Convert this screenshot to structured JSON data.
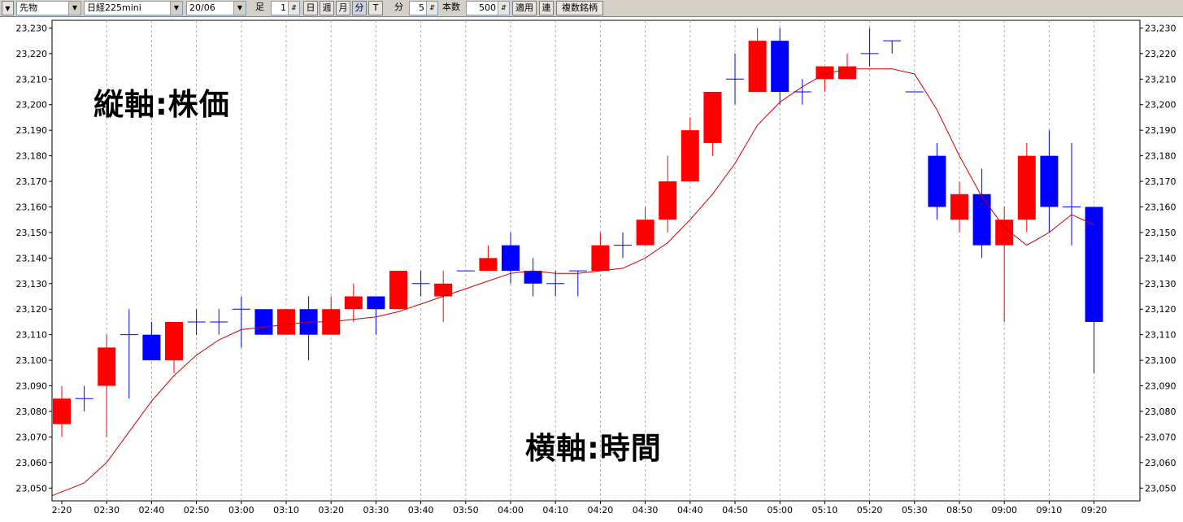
{
  "toolbar": {
    "menu_arrow": "▼",
    "market": "先物",
    "symbol": "日経225mini",
    "contract": "20/06",
    "ashi_label": "足",
    "ashi_value": "1",
    "btn_day": "日",
    "btn_week": "週",
    "btn_month": "月",
    "btn_minute": "分",
    "btn_tick": "T",
    "fun_label": "分",
    "fun_value": "5",
    "count_label": "本数",
    "count_value": "500",
    "apply": "適用",
    "link": "連",
    "multi": "複数銘柄"
  },
  "annotations": {
    "vertical": "縦軸:株価",
    "horizontal": "横軸:時間"
  },
  "colors": {
    "up": "#ff0000",
    "down": "#0000ff",
    "ma": "#cc0000",
    "grid": "#b0b0b0"
  },
  "chart_data": {
    "type": "candlestick",
    "ylim": [
      23045,
      23233
    ],
    "yticks": [
      23050,
      23060,
      23070,
      23080,
      23090,
      23100,
      23110,
      23120,
      23130,
      23140,
      23150,
      23160,
      23170,
      23180,
      23190,
      23200,
      23210,
      23220,
      23230
    ],
    "ytick_labels": [
      "23,050",
      "23,060",
      "23,070",
      "23,080",
      "23,090",
      "23,100",
      "23,110",
      "23,120",
      "23,130",
      "23,140",
      "23,150",
      "23,160",
      "23,170",
      "23,180",
      "23,190",
      "23,200",
      "23,210",
      "23,220",
      "23,230"
    ],
    "xtick_labels": [
      "2:20",
      "02:30",
      "02:40",
      "02:50",
      "03:00",
      "03:10",
      "03:20",
      "03:30",
      "03:40",
      "03:50",
      "04:00",
      "04:10",
      "04:20",
      "04:30",
      "04:40",
      "04:50",
      "05:00",
      "05:10",
      "05:20",
      "05:30",
      "08:50",
      "09:00",
      "09:10",
      "09:20"
    ],
    "candles": [
      {
        "o": 23075,
        "h": 23090,
        "l": 23070,
        "c": 23085
      },
      {
        "o": 23085,
        "h": 23090,
        "l": 23080,
        "c": 23085
      },
      {
        "o": 23090,
        "h": 23110,
        "l": 23070,
        "c": 23105
      },
      {
        "o": 23110,
        "h": 23120,
        "l": 23085,
        "c": 23110
      },
      {
        "o": 23110,
        "h": 23115,
        "l": 23100,
        "c": 23100
      },
      {
        "o": 23100,
        "h": 23115,
        "l": 23095,
        "c": 23115
      },
      {
        "o": 23115,
        "h": 23120,
        "l": 23110,
        "c": 23115
      },
      {
        "o": 23115,
        "h": 23120,
        "l": 23110,
        "c": 23115
      },
      {
        "o": 23120,
        "h": 23125,
        "l": 23105,
        "c": 23120
      },
      {
        "o": 23120,
        "h": 23120,
        "l": 23110,
        "c": 23110
      },
      {
        "o": 23110,
        "h": 23120,
        "l": 23110,
        "c": 23120
      },
      {
        "o": 23120,
        "h": 23125,
        "l": 23100,
        "c": 23110
      },
      {
        "o": 23110,
        "h": 23125,
        "l": 23110,
        "c": 23120
      },
      {
        "o": 23120,
        "h": 23130,
        "l": 23115,
        "c": 23125
      },
      {
        "o": 23125,
        "h": 23125,
        "l": 23110,
        "c": 23120
      },
      {
        "o": 23120,
        "h": 23135,
        "l": 23120,
        "c": 23135
      },
      {
        "o": 23130,
        "h": 23135,
        "l": 23125,
        "c": 23130
      },
      {
        "o": 23125,
        "h": 23135,
        "l": 23115,
        "c": 23130
      },
      {
        "o": 23135,
        "h": 23135,
        "l": 23135,
        "c": 23135
      },
      {
        "o": 23135,
        "h": 23145,
        "l": 23135,
        "c": 23140
      },
      {
        "o": 23145,
        "h": 23150,
        "l": 23130,
        "c": 23135
      },
      {
        "o": 23135,
        "h": 23140,
        "l": 23125,
        "c": 23130
      },
      {
        "o": 23130,
        "h": 23135,
        "l": 23125,
        "c": 23130
      },
      {
        "o": 23135,
        "h": 23135,
        "l": 23125,
        "c": 23135
      },
      {
        "o": 23135,
        "h": 23150,
        "l": 23135,
        "c": 23145
      },
      {
        "o": 23145,
        "h": 23150,
        "l": 23140,
        "c": 23145
      },
      {
        "o": 23145,
        "h": 23160,
        "l": 23145,
        "c": 23155
      },
      {
        "o": 23155,
        "h": 23180,
        "l": 23150,
        "c": 23170
      },
      {
        "o": 23170,
        "h": 23195,
        "l": 23170,
        "c": 23190
      },
      {
        "o": 23185,
        "h": 23205,
        "l": 23180,
        "c": 23205
      },
      {
        "o": 23210,
        "h": 23220,
        "l": 23200,
        "c": 23210
      },
      {
        "o": 23205,
        "h": 23230,
        "l": 23205,
        "c": 23225
      },
      {
        "o": 23225,
        "h": 23230,
        "l": 23200,
        "c": 23205
      },
      {
        "o": 23205,
        "h": 23210,
        "l": 23200,
        "c": 23205
      },
      {
        "o": 23210,
        "h": 23215,
        "l": 23205,
        "c": 23215
      },
      {
        "o": 23210,
        "h": 23220,
        "l": 23210,
        "c": 23215
      },
      {
        "o": 23220,
        "h": 23230,
        "l": 23215,
        "c": 23220
      },
      {
        "o": 23225,
        "h": 23225,
        "l": 23220,
        "c": 23225
      },
      {
        "o": 23205,
        "h": 23205,
        "l": 23205,
        "c": 23205
      },
      {
        "o": 23180,
        "h": 23185,
        "l": 23155,
        "c": 23160
      },
      {
        "o": 23155,
        "h": 23170,
        "l": 23150,
        "c": 23165
      },
      {
        "o": 23165,
        "h": 23175,
        "l": 23140,
        "c": 23145
      },
      {
        "o": 23145,
        "h": 23160,
        "l": 23115,
        "c": 23155
      },
      {
        "o": 23155,
        "h": 23185,
        "l": 23150,
        "c": 23180
      },
      {
        "o": 23180,
        "h": 23190,
        "l": 23150,
        "c": 23160
      },
      {
        "o": 23160,
        "h": 23185,
        "l": 23145,
        "c": 23160
      },
      {
        "o": 23160,
        "h": 23160,
        "l": 23095,
        "c": 23115
      }
    ],
    "ma": [
      23047,
      23052,
      23060,
      23072,
      23084,
      23094,
      23102,
      23108,
      23112,
      23113,
      23114,
      23115,
      23115,
      23116,
      23117,
      23119,
      23122,
      23125,
      23128,
      23131,
      23134,
      23135,
      23134,
      23134,
      23135,
      23136,
      23140,
      23146,
      23155,
      23165,
      23177,
      23192,
      23201,
      23207,
      23212,
      23214,
      23214,
      23214,
      23212,
      23198,
      23180,
      23164,
      23152,
      23145,
      23150,
      23157,
      23153
    ]
  }
}
